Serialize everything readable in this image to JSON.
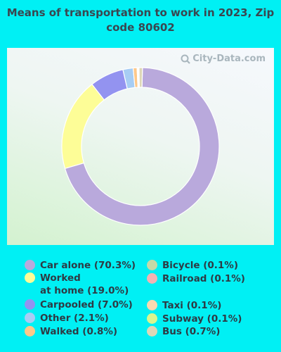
{
  "chart_data": {
    "type": "pie",
    "title": "Means of transportation to work in 2023, Zip code 80602",
    "watermark": "City-Data.com",
    "slices": [
      {
        "label": "Car alone",
        "value": 70.3,
        "legend": "Car alone (70.3%)",
        "color": "#b9a9dc"
      },
      {
        "label": "Worked at home",
        "value": 19.0,
        "legend": "Worked\nat home (19.0%)",
        "color": "#fdfd97"
      },
      {
        "label": "Carpooled",
        "value": 7.0,
        "legend": "Carpooled (7.0%)",
        "color": "#9393f0"
      },
      {
        "label": "Other",
        "value": 2.1,
        "legend": "Other (2.1%)",
        "color": "#a7cdf4"
      },
      {
        "label": "Walked",
        "value": 0.8,
        "legend": "Walked (0.8%)",
        "color": "#fdc88a"
      },
      {
        "label": "Bicycle",
        "value": 0.1,
        "legend": "Bicycle (0.1%)",
        "color": "#c6d9a7"
      },
      {
        "label": "Railroad",
        "value": 0.1,
        "legend": "Railroad (0.1%)",
        "color": "#f3b3b3"
      },
      {
        "label": "Taxi",
        "value": 0.1,
        "legend": "Taxi (0.1%)",
        "color": "#fad9b0"
      },
      {
        "label": "Subway",
        "value": 0.1,
        "legend": "Subway (0.1%)",
        "color": "#d9f58f"
      },
      {
        "label": "Bus",
        "value": 0.7,
        "legend": "Bus (0.7%)",
        "color": "#ddd7b7"
      }
    ]
  }
}
